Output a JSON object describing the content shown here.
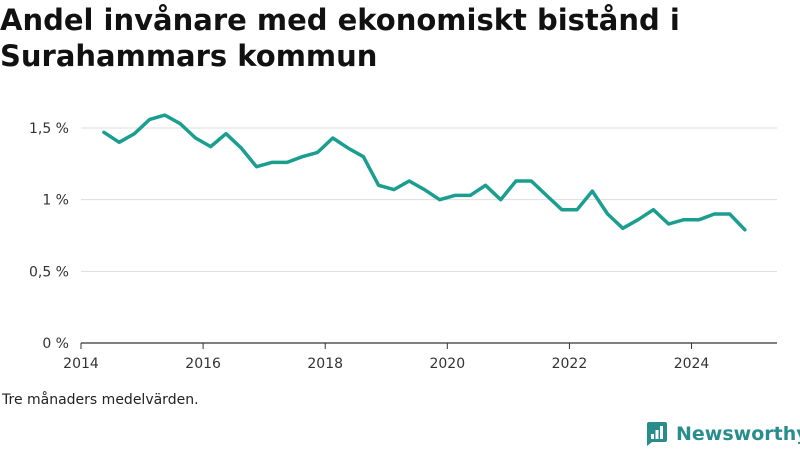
{
  "title": "Andel invånare med ekonomiskt bistånd i Surahammars kommun",
  "footnote": "Tre månaders medelvärden.",
  "brand": {
    "name": "Newsworthy",
    "color": "#2a8d8d",
    "icon": "bar-chart-logo-icon"
  },
  "colors": {
    "line": "#1a9e8f",
    "grid": "#dddddd",
    "axis": "#333333"
  },
  "chart_data": {
    "type": "line",
    "title": "Andel invånare med ekonomiskt bistånd i Surahammars kommun",
    "xlabel": "",
    "ylabel": "",
    "xlim": [
      2014.0,
      2025.4
    ],
    "ylim": [
      0,
      1.5
    ],
    "xticks": [
      {
        "value": 2014,
        "label": "2014"
      },
      {
        "value": 2016,
        "label": "2016"
      },
      {
        "value": 2018,
        "label": "2018"
      },
      {
        "value": 2020,
        "label": "2020"
      },
      {
        "value": 2022,
        "label": "2022"
      },
      {
        "value": 2024,
        "label": "2024"
      }
    ],
    "yticks": [
      {
        "value": 0,
        "label": "0 %"
      },
      {
        "value": 0.5,
        "label": "0,5 %"
      },
      {
        "value": 1,
        "label": "1 %"
      },
      {
        "value": 1.5,
        "label": "1,5 %"
      }
    ],
    "grid": true,
    "series": [
      {
        "x": [
          2014.375,
          2014.625,
          2014.875,
          2015.125,
          2015.375,
          2015.625,
          2015.875,
          2016.125,
          2016.375,
          2016.625,
          2016.875,
          2017.125,
          2017.375,
          2017.625,
          2017.875,
          2018.125,
          2018.375,
          2018.625,
          2018.875,
          2019.125,
          2019.375,
          2019.625,
          2019.875,
          2020.125,
          2020.375,
          2020.625,
          2020.875,
          2021.125,
          2021.375,
          2021.625,
          2021.875,
          2022.125,
          2022.375,
          2022.625,
          2022.875,
          2023.125,
          2023.375,
          2023.625,
          2023.875,
          2024.125,
          2024.375,
          2024.625,
          2024.875
        ],
        "y": [
          1.47,
          1.4,
          1.46,
          1.56,
          1.59,
          1.53,
          1.43,
          1.37,
          1.46,
          1.36,
          1.23,
          1.26,
          1.26,
          1.3,
          1.33,
          1.43,
          1.36,
          1.3,
          1.1,
          1.07,
          1.13,
          1.07,
          1.0,
          1.03,
          1.03,
          1.1,
          1.0,
          1.13,
          1.13,
          1.03,
          0.93,
          0.93,
          1.06,
          0.9,
          0.8,
          0.86,
          0.93,
          0.83,
          0.86,
          0.86,
          0.9,
          0.9,
          0.79
        ]
      }
    ]
  }
}
